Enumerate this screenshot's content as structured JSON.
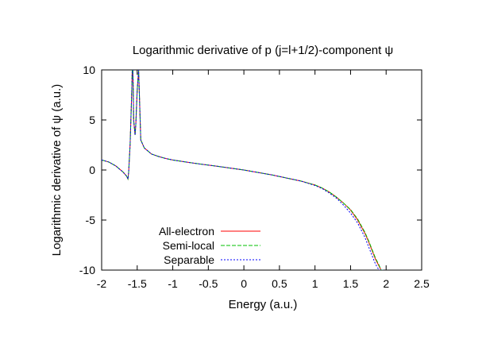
{
  "chart_data": {
    "type": "line",
    "title": "Logarithmic derivative of p (j=l+1/2)-component ψ",
    "xlabel": "Energy (a.u.)",
    "ylabel": "Logarithmic derivative of ψ (a.u.)",
    "xlim": [
      -2,
      2.5
    ],
    "ylim": [
      -10,
      10
    ],
    "xticks": [
      -2,
      -1.5,
      -1,
      -0.5,
      0,
      0.5,
      1,
      1.5,
      2,
      2.5
    ],
    "xtick_labels": [
      "-2",
      "-1.5",
      "-1",
      "-0.5",
      "0",
      "0.5",
      "1",
      "1.5",
      "2",
      "2.5"
    ],
    "yticks": [
      10,
      5,
      0,
      -5,
      -10
    ],
    "ytick_labels": [
      "10",
      "5",
      "0",
      "-5",
      "-10"
    ],
    "grid": false,
    "legend": "bottom-left",
    "series": [
      {
        "name": "All-electron",
        "color": "#ff0000",
        "dash": "solid",
        "x": [
          -2.0,
          -1.9,
          -1.8,
          -1.7,
          -1.65,
          -1.63,
          -1.62,
          -1.6,
          -1.58,
          -1.57,
          -1.56,
          -1.55,
          -1.53,
          -1.52,
          -1.5,
          -1.48,
          -1.45,
          -1.4,
          -1.3,
          -1.2,
          -1.1,
          -1.0,
          -0.8,
          -0.6,
          -0.4,
          -0.2,
          0.0,
          0.2,
          0.4,
          0.6,
          0.8,
          1.0,
          1.1,
          1.2,
          1.3,
          1.4,
          1.5,
          1.6,
          1.7,
          1.75,
          1.8,
          1.85,
          1.9,
          1.93,
          1.96
        ],
        "y": [
          1.0,
          0.8,
          0.4,
          -0.2,
          -0.6,
          -0.9,
          -0.2,
          2.5,
          7.0,
          10.0,
          10.0,
          5.0,
          3.5,
          4.5,
          8.0,
          10.0,
          3.0,
          2.2,
          1.6,
          1.35,
          1.15,
          1.0,
          0.78,
          0.58,
          0.4,
          0.2,
          0.0,
          -0.25,
          -0.5,
          -0.8,
          -1.1,
          -1.5,
          -1.8,
          -2.2,
          -2.7,
          -3.3,
          -4.0,
          -5.0,
          -6.3,
          -7.1,
          -8.0,
          -8.9,
          -9.6,
          -10.0,
          -10.0
        ]
      },
      {
        "name": "Semi-local",
        "color": "#00c000",
        "dash": "dashed",
        "x": [
          -2.0,
          -1.9,
          -1.8,
          -1.7,
          -1.65,
          -1.63,
          -1.62,
          -1.6,
          -1.58,
          -1.57,
          -1.56,
          -1.55,
          -1.53,
          -1.52,
          -1.5,
          -1.48,
          -1.45,
          -1.4,
          -1.3,
          -1.2,
          -1.1,
          -1.0,
          -0.8,
          -0.6,
          -0.4,
          -0.2,
          0.0,
          0.2,
          0.4,
          0.6,
          0.8,
          1.0,
          1.1,
          1.2,
          1.3,
          1.4,
          1.5,
          1.6,
          1.7,
          1.75,
          1.8,
          1.85,
          1.9,
          1.93,
          1.96
        ],
        "y": [
          1.0,
          0.8,
          0.4,
          -0.2,
          -0.6,
          -0.9,
          -0.2,
          2.5,
          7.0,
          10.0,
          10.0,
          5.0,
          3.5,
          4.5,
          8.0,
          10.0,
          3.0,
          2.2,
          1.6,
          1.35,
          1.15,
          1.0,
          0.78,
          0.58,
          0.4,
          0.2,
          0.0,
          -0.25,
          -0.5,
          -0.8,
          -1.1,
          -1.5,
          -1.8,
          -2.2,
          -2.7,
          -3.3,
          -3.95,
          -4.9,
          -6.2,
          -7.0,
          -7.9,
          -8.8,
          -9.5,
          -10.0,
          -10.0
        ]
      },
      {
        "name": "Separable",
        "color": "#0000ff",
        "dash": "dotted",
        "x": [
          -2.0,
          -1.9,
          -1.8,
          -1.7,
          -1.65,
          -1.63,
          -1.62,
          -1.6,
          -1.58,
          -1.57,
          -1.56,
          -1.55,
          -1.53,
          -1.52,
          -1.5,
          -1.48,
          -1.45,
          -1.4,
          -1.3,
          -1.2,
          -1.1,
          -1.0,
          -0.8,
          -0.6,
          -0.4,
          -0.2,
          0.0,
          0.2,
          0.4,
          0.6,
          0.8,
          1.0,
          1.1,
          1.2,
          1.3,
          1.4,
          1.5,
          1.6,
          1.7,
          1.75,
          1.8,
          1.85,
          1.9,
          1.93,
          1.96
        ],
        "y": [
          1.0,
          0.8,
          0.4,
          -0.2,
          -0.6,
          -0.9,
          -0.2,
          2.5,
          7.0,
          10.0,
          10.0,
          5.0,
          3.5,
          4.5,
          8.0,
          10.0,
          3.0,
          2.2,
          1.6,
          1.35,
          1.15,
          1.0,
          0.78,
          0.58,
          0.4,
          0.2,
          0.0,
          -0.25,
          -0.5,
          -0.8,
          -1.1,
          -1.55,
          -1.85,
          -2.3,
          -2.8,
          -3.5,
          -4.3,
          -5.3,
          -6.7,
          -7.6,
          -8.5,
          -9.4,
          -10.0,
          -10.0,
          -10.0
        ]
      }
    ]
  }
}
